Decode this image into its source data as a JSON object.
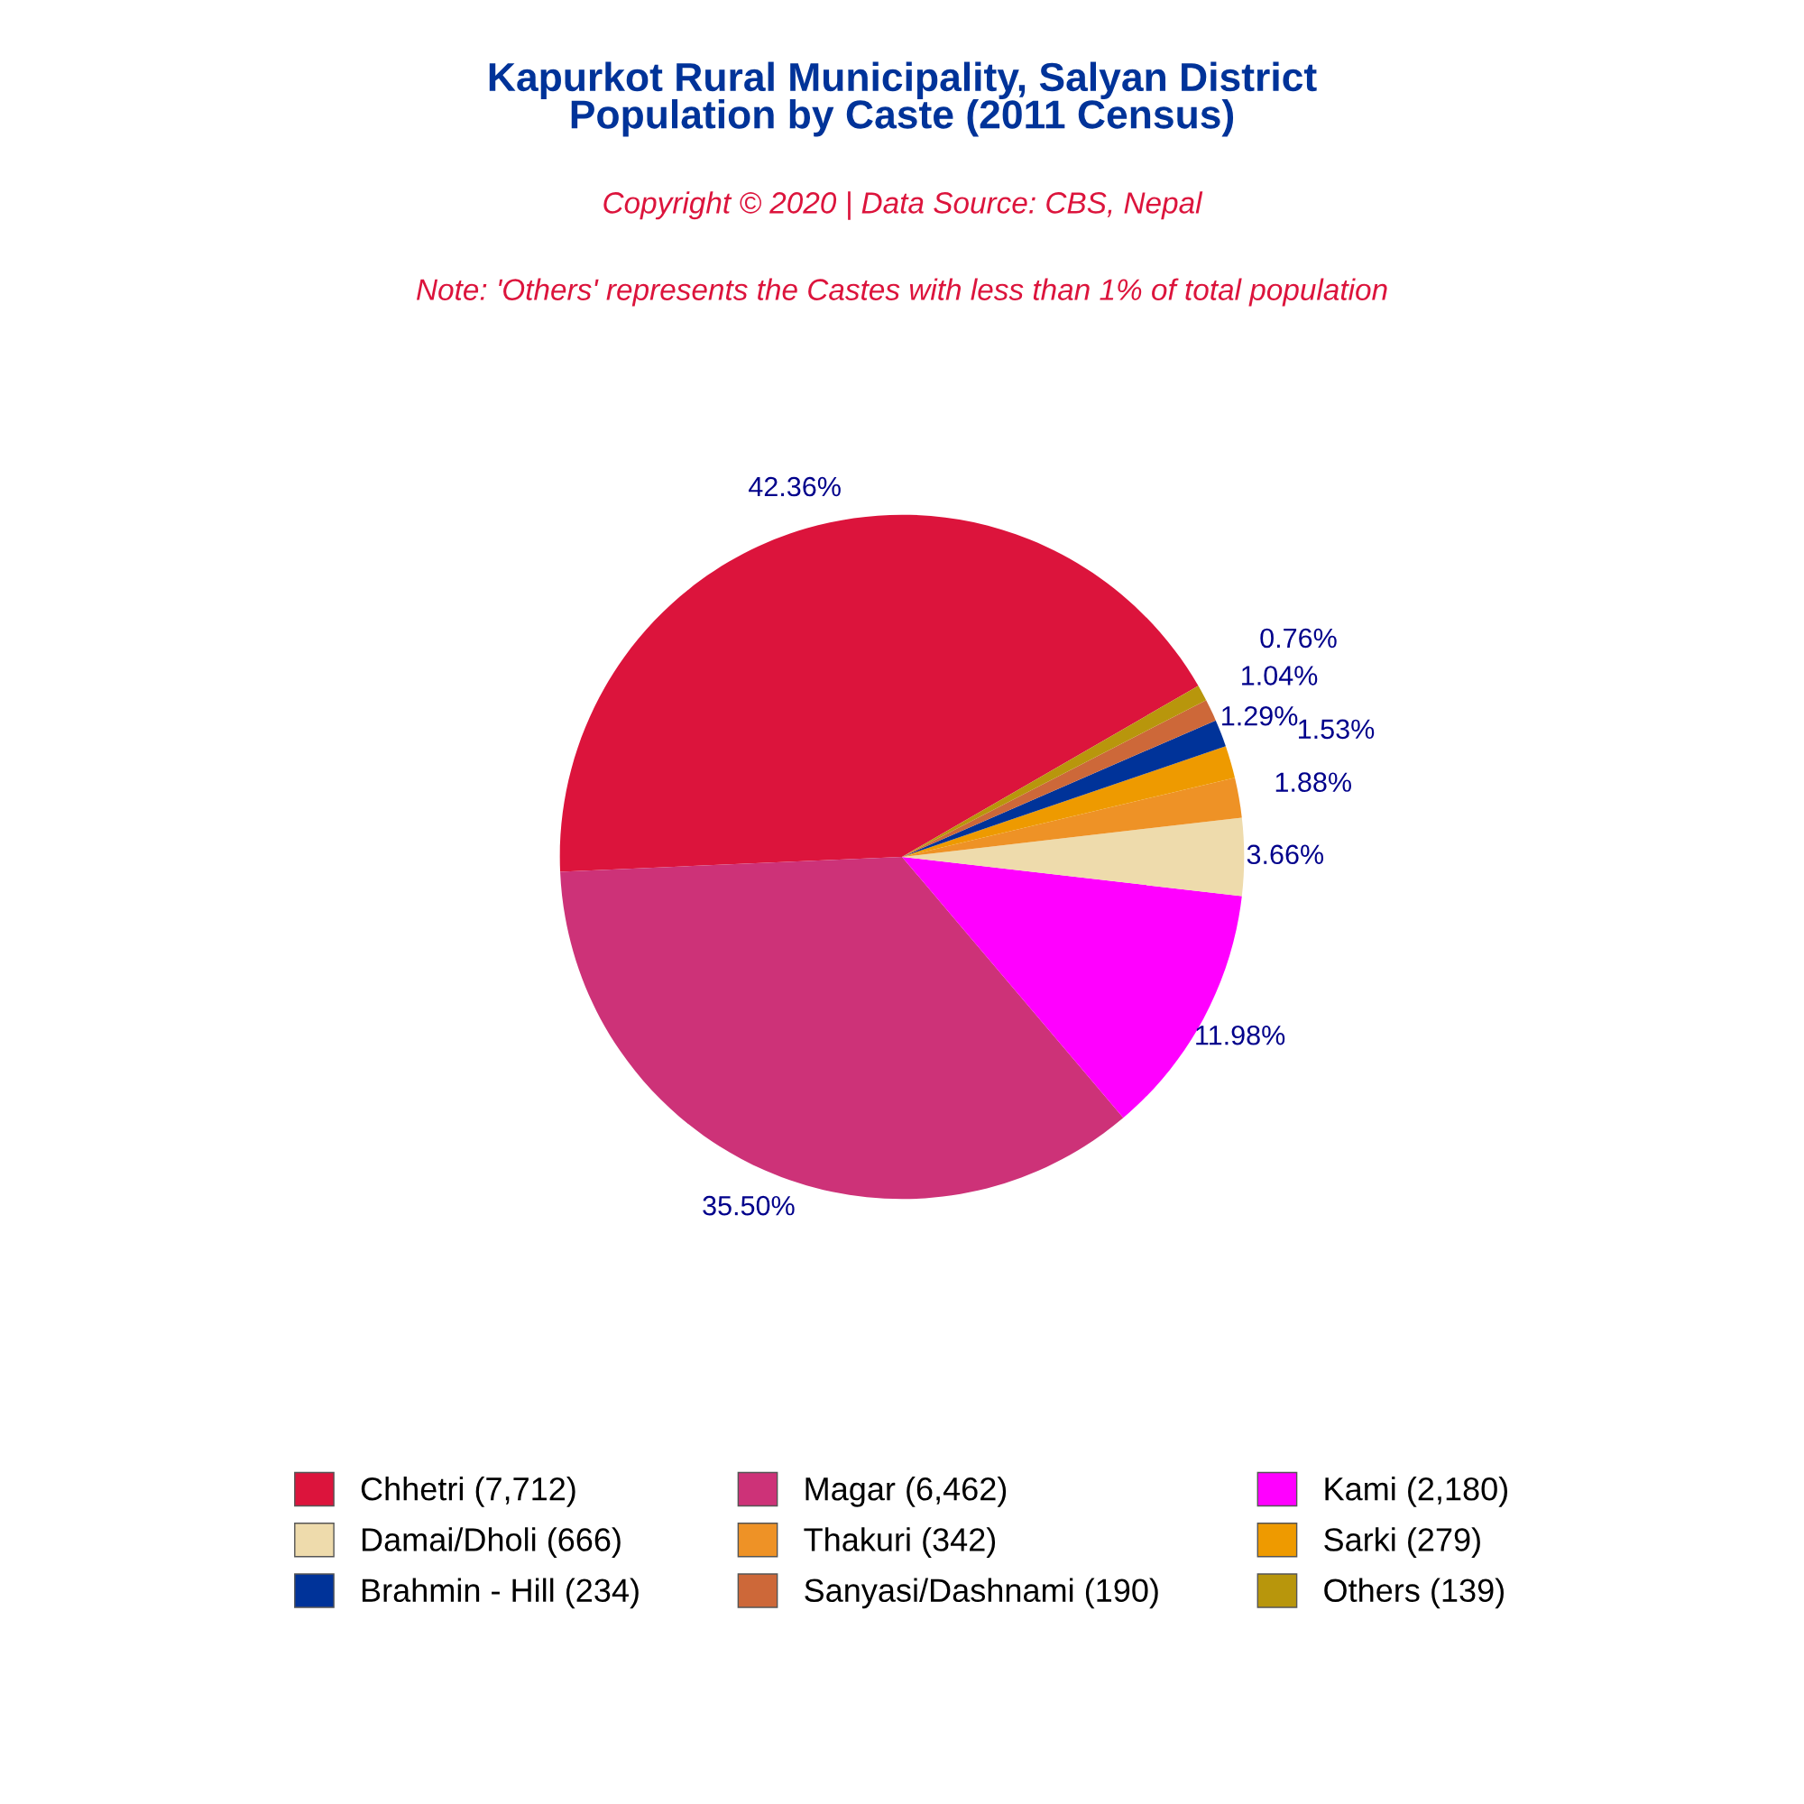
{
  "chart_data": {
    "type": "pie",
    "title": "Kapurkot Rural Municipality, Salyan District\nPopulation by Caste (2011 Census)",
    "subtitle": "Copyright © 2020 | Data Source: CBS, Nepal",
    "annotations": [
      "Note: 'Others' represents the Castes with less than 1% of total population"
    ],
    "categories": [
      "Chhetri (7,712)",
      "Magar (6,462)",
      "Kami (2,180)",
      "Damai/Dholi (666)",
      "Thakuri (342)",
      "Sarki (279)",
      "Brahmin - Hill (234)",
      "Sanyasi/Dashnami (190)",
      "Others (139)"
    ],
    "values": [
      42.36,
      35.5,
      11.98,
      3.66,
      1.88,
      1.53,
      1.29,
      1.04,
      0.76
    ],
    "value_labels": [
      "42.36%",
      "35.50%",
      "11.98%",
      "3.66%",
      "1.88%",
      "1.53%",
      "1.29%",
      "1.04%",
      "0.76%"
    ],
    "colors": [
      "#dc143c",
      "#cd3278",
      "#ff00ff",
      "#eedbac",
      "#ee9226",
      "#ee9a00",
      "#003399",
      "#cd6839",
      "#b8960c"
    ],
    "legend": "bottom"
  }
}
